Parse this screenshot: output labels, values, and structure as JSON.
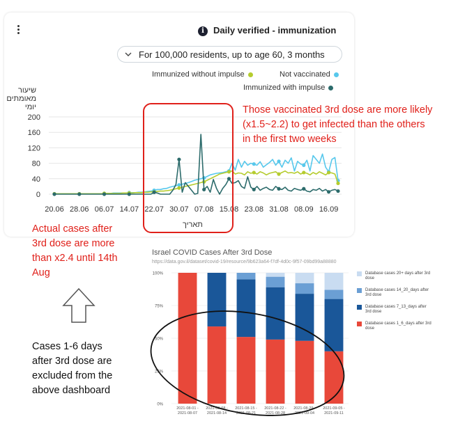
{
  "dashboard": {
    "title": "Daily verified - immunization",
    "info_icon": "info-icon",
    "menu_icon": "kebab-icon",
    "filter_label": "For 100,000 residents, up to age 60, 3 months",
    "legend": [
      {
        "label": "Immunized without impulse",
        "color": "#b5cc2e"
      },
      {
        "label": "Not vaccinated",
        "color": "#57c8ec"
      },
      {
        "label": "Immunized with impulse",
        "color": "#2c6b6b"
      }
    ]
  },
  "annotations": {
    "third_dose_note": [
      "Those vaccinated 3rd dose are more likely",
      "(x1.5~2.2) to get infected than the others",
      "in the first two weeks"
    ],
    "actual_cases_note": [
      "Actual cases after",
      "3rd dose are more",
      "than x2.4 until 14th",
      "Aug"
    ],
    "excluded_note": [
      "Cases 1-6 days",
      "after 3rd dose are",
      "excluded from the",
      "above dashboard"
    ],
    "arrow_icon": "up-arrow-icon"
  },
  "chart_data": [
    {
      "type": "line",
      "title": "Daily verified - immunization",
      "subtitle": "For 100,000 residents, up to age 60, 3 months",
      "ylabel_lines": [
        "שיעור",
        "מאומתים",
        "יומי"
      ],
      "xlabel": "תאריך",
      "ylim": [
        0,
        200
      ],
      "yticks": [
        0,
        40,
        80,
        120,
        160,
        200
      ],
      "x_tick_labels": [
        "20.06",
        "28.06",
        "06.07",
        "14.07",
        "22.07",
        "30.07",
        "07.08",
        "15.08",
        "23.08",
        "31.08",
        "08.09",
        "16.09"
      ],
      "x_tick_index": [
        0,
        8,
        16,
        24,
        32,
        40,
        48,
        56,
        64,
        72,
        80,
        88
      ],
      "series": [
        {
          "name": "Not vaccinated",
          "color": "#57c8ec",
          "values": [
            1,
            1,
            1,
            1,
            1,
            1,
            1,
            1,
            1,
            1,
            1,
            1,
            1,
            1,
            1,
            1,
            2,
            2,
            2,
            3,
            3,
            3,
            3,
            3,
            4,
            4,
            4,
            5,
            5,
            6,
            7,
            8,
            10,
            12,
            12,
            14,
            15,
            18,
            20,
            22,
            24,
            26,
            28,
            30,
            33,
            36,
            38,
            40,
            42,
            46,
            50,
            52,
            54,
            55,
            56,
            58,
            60,
            80,
            62,
            90,
            70,
            85,
            75,
            80,
            78,
            75,
            84,
            70,
            76,
            82,
            90,
            75,
            85,
            70,
            88,
            80,
            94,
            60,
            85,
            78,
            75,
            88,
            60,
            100,
            90,
            80,
            104,
            70,
            58,
            90,
            95,
            35
          ]
        },
        {
          "name": "Immunized without impulse",
          "color": "#b5cc2e",
          "values": [
            1,
            1,
            1,
            1,
            1,
            1,
            1,
            1,
            1,
            1,
            1,
            1,
            1,
            1,
            1,
            1,
            2,
            2,
            2,
            2,
            2,
            2,
            3,
            3,
            3,
            3,
            4,
            4,
            4,
            5,
            5,
            6,
            6,
            7,
            8,
            8,
            9,
            10,
            12,
            14,
            16,
            18,
            20,
            22,
            24,
            26,
            28,
            30,
            32,
            36,
            40,
            44,
            48,
            52,
            54,
            56,
            58,
            60,
            52,
            55,
            54,
            50,
            58,
            54,
            56,
            52,
            58,
            55,
            50,
            54,
            56,
            58,
            52,
            56,
            60,
            55,
            56,
            54,
            58,
            52,
            56,
            54,
            50,
            56,
            52,
            58,
            54,
            50,
            56,
            55,
            52,
            28
          ]
        },
        {
          "name": "Immunized with impulse",
          "color": "#2c6b6b",
          "values": [
            0,
            0,
            0,
            0,
            0,
            0,
            0,
            0,
            0,
            0,
            0,
            0,
            0,
            0,
            0,
            0,
            0,
            0,
            0,
            0,
            0,
            0,
            0,
            0,
            0,
            0,
            0,
            0,
            0,
            0,
            0,
            0,
            5,
            3,
            0,
            0,
            0,
            0,
            10,
            25,
            90,
            5,
            30,
            20,
            10,
            0,
            2,
            155,
            12,
            20,
            5,
            38,
            15,
            0,
            15,
            25,
            40,
            28,
            30,
            35,
            20,
            15,
            45,
            18,
            12,
            20,
            10,
            15,
            18,
            12,
            10,
            20,
            14,
            12,
            18,
            10,
            8,
            15,
            12,
            10,
            14,
            8,
            6,
            12,
            10,
            15,
            8,
            12,
            6,
            10,
            12,
            8
          ]
        }
      ]
    },
    {
      "type": "bar",
      "stacked": true,
      "title": "Israel COVID Cases After 3rd Dose",
      "source": "https://data.gov.il/dataset/covid-19/resource/9b623a64-f7df-4d0c-9f57-09bd99a88880",
      "ylim": [
        0,
        100
      ],
      "y_tick_labels": [
        "0%",
        "25%",
        "50%",
        "75%",
        "100%"
      ],
      "categories": [
        "2021-08-01 - 2021-08-07",
        "2021-08-08 - 2021-08-14",
        "2021-08-15 - 2021-08-21",
        "2021-08-22 - 2021-08-28",
        "2021-08-29 - 2021-09-04",
        "2021-09-05 - 2021-09-11"
      ],
      "series": [
        {
          "name": "Database cases 1_6_days after 3rd dose",
          "color": "#e8483a",
          "values": [
            100,
            59,
            51,
            49,
            48,
            40
          ]
        },
        {
          "name": "Database cases 7_13_days after 3rd dose",
          "color": "#1a5799",
          "values": [
            0,
            41,
            44,
            40,
            36,
            40
          ]
        },
        {
          "name": "Database cases 14_20_days after 3rd dose",
          "color": "#6b9fd4",
          "values": [
            0,
            0,
            5,
            8,
            8,
            7
          ]
        },
        {
          "name": "Database cases 20+ days after 3rd dose",
          "color": "#c9dcf1",
          "values": [
            0,
            0,
            0,
            3,
            8,
            13
          ]
        }
      ]
    }
  ]
}
